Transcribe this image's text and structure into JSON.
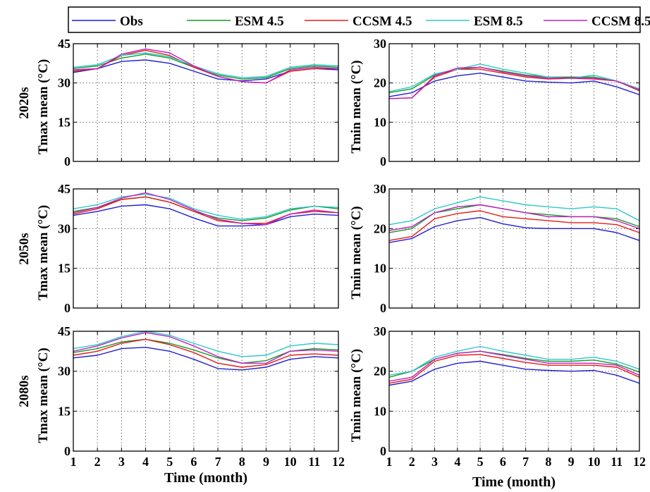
{
  "legend": {
    "entries": [
      {
        "label": "Obs",
        "color": "#1f1fd0"
      },
      {
        "label": "ESM 4.5",
        "color": "#1a9a2a"
      },
      {
        "label": "CCSM 4.5",
        "color": "#e41a1a"
      },
      {
        "label": "ESM 8.5",
        "color": "#2ec8c8"
      },
      {
        "label": "CCSM 8.5",
        "color": "#c020c0"
      }
    ]
  },
  "rows": [
    {
      "label": "2020s"
    },
    {
      "label": "2050s"
    },
    {
      "label": "2080s"
    }
  ],
  "xlabel": "Time (month)",
  "chart_data": [
    {
      "type": "line",
      "row": "2020s",
      "ylabel": "Tmax mean (°C)",
      "xlim": [
        1,
        12
      ],
      "ylim": [
        0,
        45
      ],
      "yticks": [
        0,
        15,
        30,
        45
      ],
      "xticks": [],
      "grid": true,
      "x": [
        1,
        2,
        3,
        4,
        5,
        6,
        7,
        8,
        9,
        10,
        11,
        12
      ],
      "series": [
        {
          "name": "Obs",
          "values": [
            34,
            35.5,
            38.2,
            38.8,
            37.5,
            34.5,
            31.5,
            30.8,
            31.5,
            34.5,
            35.5,
            35
          ]
        },
        {
          "name": "ESM 4.5",
          "values": [
            35.5,
            36.5,
            39.5,
            41,
            39.5,
            36,
            33,
            31.5,
            32,
            35.5,
            36.5,
            36
          ]
        },
        {
          "name": "CCSM 4.5",
          "values": [
            34.5,
            35.5,
            40.5,
            42.5,
            40.5,
            36,
            32.5,
            30.5,
            30,
            34.5,
            35.5,
            35.5
          ]
        },
        {
          "name": "ESM 8.5",
          "values": [
            36,
            37,
            40.5,
            41.5,
            40,
            36.5,
            33.5,
            32,
            32.5,
            36,
            37,
            36.5
          ]
        },
        {
          "name": "CCSM 8.5",
          "values": [
            35,
            35.5,
            41,
            43,
            41.5,
            36.5,
            32.5,
            30.5,
            30,
            35,
            36,
            35.5
          ]
        }
      ]
    },
    {
      "type": "line",
      "row": "2020s",
      "ylabel": "Tmin mean (°C)",
      "xlim": [
        1,
        12
      ],
      "ylim": [
        0,
        30
      ],
      "yticks": [
        0,
        10,
        20,
        30
      ],
      "xticks": [],
      "grid": true,
      "x": [
        1,
        2,
        3,
        4,
        5,
        6,
        7,
        8,
        9,
        10,
        11,
        12
      ],
      "series": [
        {
          "name": "Obs",
          "values": [
            16.5,
            17.5,
            20.5,
            21.8,
            22.5,
            21.5,
            20.5,
            20.2,
            20,
            20.5,
            19,
            17
          ]
        },
        {
          "name": "ESM 4.5",
          "values": [
            17.5,
            18.5,
            22,
            23.5,
            24,
            23,
            22,
            21.5,
            21.5,
            21.5,
            20.5,
            18.5
          ]
        },
        {
          "name": "CCSM 4.5",
          "values": [
            16,
            16.2,
            21.5,
            23.5,
            23.5,
            22.5,
            21.5,
            21,
            21.2,
            21,
            20.5,
            18
          ]
        },
        {
          "name": "ESM 8.5",
          "values": [
            17.8,
            19,
            22.3,
            23.5,
            24.8,
            23.5,
            22.5,
            21.5,
            21.2,
            22,
            20.5,
            18.5
          ]
        },
        {
          "name": "CCSM 8.5",
          "values": [
            16,
            16.2,
            21.8,
            23.8,
            24,
            22.8,
            21.8,
            21.2,
            21.3,
            21.2,
            20.5,
            18.2
          ]
        }
      ]
    },
    {
      "type": "line",
      "row": "2050s",
      "ylabel": "Tmax mean (°C)",
      "xlim": [
        1,
        12
      ],
      "ylim": [
        0,
        45
      ],
      "yticks": [
        0,
        15,
        30,
        45
      ],
      "xticks": [],
      "grid": true,
      "x": [
        1,
        2,
        3,
        4,
        5,
        6,
        7,
        8,
        9,
        10,
        11,
        12
      ],
      "series": [
        {
          "name": "Obs",
          "values": [
            35,
            36.5,
            38.5,
            39,
            37.5,
            34,
            31,
            31,
            31.5,
            34.5,
            35.5,
            35
          ]
        },
        {
          "name": "ESM 4.5",
          "values": [
            36.5,
            38,
            41,
            42,
            40,
            36.5,
            34,
            33,
            34,
            37,
            38.5,
            37.5
          ]
        },
        {
          "name": "CCSM 4.5",
          "values": [
            35.5,
            37.5,
            41,
            42,
            40,
            36.5,
            33,
            32,
            32,
            35.5,
            36.5,
            36
          ]
        },
        {
          "name": "ESM 8.5",
          "values": [
            37.5,
            39,
            42,
            43,
            41.5,
            37.5,
            35,
            33.5,
            34.5,
            37.5,
            38.5,
            38
          ]
        },
        {
          "name": "CCSM 8.5",
          "values": [
            36,
            38,
            41.5,
            43.5,
            41,
            37,
            33.5,
            32,
            31.5,
            35.5,
            37,
            36
          ]
        }
      ]
    },
    {
      "type": "line",
      "row": "2050s",
      "ylabel": "Tmin mean (°C)",
      "xlim": [
        1,
        12
      ],
      "ylim": [
        0,
        30
      ],
      "yticks": [
        0,
        10,
        20,
        30
      ],
      "xticks": [],
      "grid": true,
      "x": [
        1,
        2,
        3,
        4,
        5,
        6,
        7,
        8,
        9,
        10,
        11,
        12
      ],
      "series": [
        {
          "name": "Obs",
          "values": [
            16.5,
            17.5,
            20.5,
            22,
            22.8,
            21.2,
            20.2,
            20,
            20,
            20,
            19,
            17
          ]
        },
        {
          "name": "ESM 4.5",
          "values": [
            19,
            20,
            24,
            25,
            26,
            25,
            24,
            23.5,
            23,
            23,
            22.5,
            20.5
          ]
        },
        {
          "name": "CCSM 4.5",
          "values": [
            17,
            18,
            22.5,
            23.8,
            24.5,
            23,
            22.5,
            22,
            21.5,
            21.5,
            21,
            19
          ]
        },
        {
          "name": "ESM 8.5",
          "values": [
            21,
            22,
            25,
            26.5,
            28,
            27,
            26,
            25.5,
            25,
            25.5,
            25,
            22
          ]
        },
        {
          "name": "CCSM 8.5",
          "values": [
            19.5,
            20.5,
            24,
            25.5,
            26,
            25,
            24,
            23,
            23,
            23,
            22,
            20
          ]
        }
      ]
    },
    {
      "type": "line",
      "row": "2080s",
      "ylabel": "Tmax mean (°C)",
      "xlim": [
        1,
        12
      ],
      "ylim": [
        0,
        45
      ],
      "yticks": [
        0,
        15,
        30,
        45
      ],
      "xticks": [
        1,
        2,
        3,
        4,
        5,
        6,
        7,
        8,
        9,
        10,
        11,
        12
      ],
      "grid": true,
      "x": [
        1,
        2,
        3,
        4,
        5,
        6,
        7,
        8,
        9,
        10,
        11,
        12
      ],
      "series": [
        {
          "name": "Obs",
          "values": [
            35,
            36,
            38.5,
            39,
            37.5,
            34.5,
            31,
            30.5,
            31.5,
            34.5,
            35.5,
            35
          ]
        },
        {
          "name": "ESM 4.5",
          "values": [
            37,
            38.5,
            41,
            42,
            40.5,
            38,
            35,
            33,
            34,
            37.5,
            38.5,
            38
          ]
        },
        {
          "name": "CCSM 4.5",
          "values": [
            36,
            37.5,
            40.5,
            42,
            40,
            37,
            33,
            31.5,
            32.5,
            36,
            36.5,
            36
          ]
        },
        {
          "name": "ESM 8.5",
          "values": [
            38.5,
            40,
            43,
            45,
            43.5,
            40.5,
            37.5,
            35.5,
            36,
            39.5,
            40.5,
            40
          ]
        },
        {
          "name": "CCSM 8.5",
          "values": [
            37.5,
            39.5,
            42.5,
            44.5,
            43,
            39.5,
            35.5,
            33,
            33,
            37.5,
            38,
            37.5
          ]
        }
      ]
    },
    {
      "type": "line",
      "row": "2080s",
      "ylabel": "Tmin mean (°C)",
      "xlim": [
        1,
        12
      ],
      "ylim": [
        0,
        30
      ],
      "yticks": [
        0,
        10,
        20,
        30
      ],
      "xticks": [
        1,
        2,
        3,
        4,
        5,
        6,
        7,
        8,
        9,
        10,
        11,
        12
      ],
      "grid": true,
      "x": [
        1,
        2,
        3,
        4,
        5,
        6,
        7,
        8,
        9,
        10,
        11,
        12
      ],
      "series": [
        {
          "name": "Obs",
          "values": [
            16.5,
            17.5,
            20.5,
            22,
            22.5,
            21.5,
            20.5,
            20.2,
            20,
            20.2,
            19,
            17
          ]
        },
        {
          "name": "ESM 4.5",
          "values": [
            18.5,
            20,
            23,
            24.5,
            25,
            24.2,
            23.2,
            22.5,
            22.5,
            22.8,
            21.8,
            19.8
          ]
        },
        {
          "name": "CCSM 4.5",
          "values": [
            17,
            18,
            22.5,
            24,
            24.2,
            23.2,
            22.2,
            21.5,
            21.5,
            21.5,
            21,
            18.5
          ]
        },
        {
          "name": "ESM 8.5",
          "values": [
            19,
            20,
            23.5,
            25,
            26.2,
            25,
            24,
            23,
            23,
            23.5,
            22.5,
            20.5
          ]
        },
        {
          "name": "CCSM 8.5",
          "values": [
            17.5,
            18.5,
            23,
            24.5,
            25,
            24,
            23,
            22,
            22,
            22,
            21.5,
            19
          ]
        }
      ]
    }
  ]
}
